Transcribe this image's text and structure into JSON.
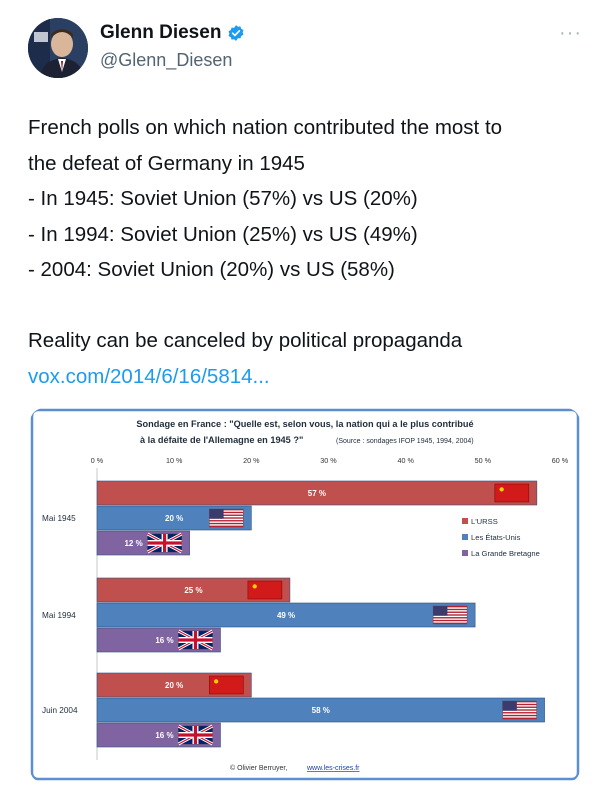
{
  "tweet": {
    "author_name": "Glenn Diesen",
    "author_handle": "@Glenn_Diesen",
    "more_label": "···",
    "lines": [
      "French polls on which nation contributed the most to",
      "the defeat of Germany in 1945",
      "- In 1945: Soviet Union (57%) vs US (20%)",
      "- In 1994: Soviet Union (25%) vs US (49%)",
      "- 2004: Soviet Union (20%) vs US (58%)",
      "",
      "Reality can be canceled by political propaganda"
    ],
    "link_text": "vox.com/2014/6/16/5814...",
    "icons": {
      "verified": "verified-badge-icon",
      "more": "more-options-icon",
      "avatar": "avatar"
    },
    "colors": {
      "verified": "#1d9bf0",
      "link": "#1d9bf0",
      "handle": "#536471"
    }
  },
  "chart_data": {
    "type": "bar",
    "title_line1": "Sondage en France : \"Quelle est, selon vous, la nation qui a le plus contribué",
    "title_line2": "à la défaite de l'Allemagne en 1945 ?\"",
    "source": "(Source : sondages IFOP 1945, 1994, 2004)",
    "x_ticks": [
      "0 %",
      "10 %",
      "20 %",
      "30 %",
      "40 %",
      "50 %",
      "60 %"
    ],
    "xlim": [
      0,
      60
    ],
    "orientation": "horizontal",
    "categories": [
      "Mai 1945",
      "Mai 1994",
      "Juin 2004"
    ],
    "series": [
      {
        "name": "L'URSS",
        "color": "#c0504d",
        "values": [
          57,
          25,
          20
        ],
        "labels": [
          "57 %",
          "25 %",
          "20 %"
        ]
      },
      {
        "name": "Les États-Unis",
        "color": "#4f81bd",
        "values": [
          20,
          49,
          58
        ],
        "labels": [
          "20 %",
          "49 %",
          "58 %"
        ]
      },
      {
        "name": "La Grande Bretagne",
        "color": "#8064a2",
        "values": [
          12,
          16,
          16
        ],
        "labels": [
          "12 %",
          "16 %",
          "16 %"
        ]
      }
    ],
    "legend_position": "right",
    "credit": "© Olivier Berruyer,",
    "credit_link": "www.les-crises.fr",
    "grid": false
  }
}
